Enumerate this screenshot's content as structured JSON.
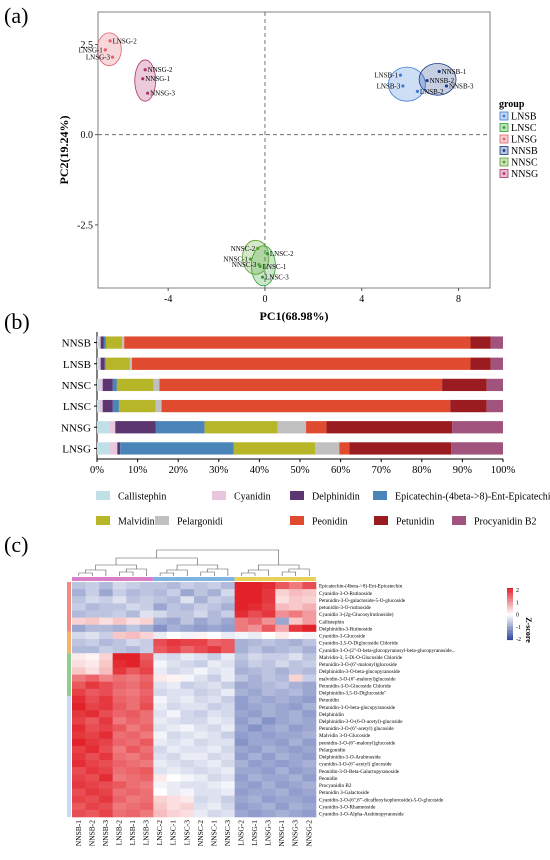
{
  "panels": {
    "a": "(a)",
    "b": "(b)",
    "c": "(c)"
  },
  "chart_data": [
    {
      "type": "scatter",
      "xlabel": "PC1(68.98%)",
      "ylabel": "PC2(19.24%)",
      "xlim": [
        -6.9,
        9.3
      ],
      "ylim": [
        -4.25,
        3.4
      ],
      "xticks": [
        "-4",
        "0",
        "4",
        "8"
      ],
      "yticks": [
        "2.5",
        "0.0",
        "-2.5"
      ],
      "grid": false,
      "legend_title": "group",
      "legend_placement": "right",
      "groups": [
        {
          "name": "LNSB",
          "color": "#3a7bd5",
          "points": [
            {
              "label": "LNSB-1",
              "x": 5.6,
              "y": 1.65
            },
            {
              "label": "LNSB-2",
              "x": 6.3,
              "y": 1.2
            },
            {
              "label": "LNSB-3",
              "x": 5.7,
              "y": 1.35
            }
          ]
        },
        {
          "name": "LNSC",
          "color": "#2ca02c",
          "points": [
            {
              "label": "LNSC-1",
              "x": -0.2,
              "y": -3.65
            },
            {
              "label": "LNSC-2",
              "x": 0.1,
              "y": -3.3
            },
            {
              "label": "LNSC-3",
              "x": -0.1,
              "y": -3.95
            }
          ]
        },
        {
          "name": "LNSG",
          "color": "#e0616b",
          "points": [
            {
              "label": "LNSG-1",
              "x": -6.6,
              "y": 2.35
            },
            {
              "label": "LNSG-2",
              "x": -6.4,
              "y": 2.6
            },
            {
              "label": "LNSG-3",
              "x": -6.3,
              "y": 2.15
            }
          ]
        },
        {
          "name": "NNSB",
          "color": "#1a3a8a",
          "points": [
            {
              "label": "NNSB-1",
              "x": 7.2,
              "y": 1.75
            },
            {
              "label": "NNSB-2",
              "x": 6.7,
              "y": 1.5
            },
            {
              "label": "NNSB-3",
              "x": 7.5,
              "y": 1.35
            }
          ]
        },
        {
          "name": "NNSC",
          "color": "#5aa02c",
          "points": [
            {
              "label": "NNSC-1",
              "x": -0.6,
              "y": -3.45
            },
            {
              "label": "NNSC-2",
              "x": -0.3,
              "y": -3.15
            },
            {
              "label": "NNSC-3",
              "x": -0.25,
              "y": -3.6
            }
          ]
        },
        {
          "name": "NNSG",
          "color": "#b0306b",
          "points": [
            {
              "label": "NNSG-1",
              "x": -5.05,
              "y": 1.55
            },
            {
              "label": "NNSG-2",
              "x": -4.95,
              "y": 1.8
            },
            {
              "label": "NNSG-3",
              "x": -4.85,
              "y": 1.15
            }
          ]
        }
      ]
    },
    {
      "type": "bar",
      "orientation": "horizontal",
      "stacked": true,
      "categories": [
        "NNSB",
        "LNSB",
        "NNSC",
        "LNSC",
        "NNSG",
        "LNSG"
      ],
      "xticks": [
        "0%",
        "10%",
        "20%",
        "30%",
        "40%",
        "50%",
        "60%",
        "70%",
        "80%",
        "90%",
        "100%"
      ],
      "xlim": [
        0,
        100
      ],
      "legend_placement": "bottom",
      "series": [
        {
          "name": "Callistephin",
          "color": "#bfe0e6",
          "values": [
            0.4,
            0.4,
            0.6,
            0.6,
            3.0,
            3.0
          ]
        },
        {
          "name": "Cyanidin",
          "color": "#e8c6dd",
          "values": [
            0.5,
            0.5,
            0.8,
            0.8,
            1.5,
            2.0
          ]
        },
        {
          "name": "Delphinidin",
          "color": "#5c3670",
          "values": [
            0.8,
            1.0,
            2.5,
            2.5,
            10.0,
            0.7
          ]
        },
        {
          "name": "Epicatechin-(4beta->8)-Ent-Epicatechin",
          "color": "#4a84b8",
          "values": [
            0.5,
            0.2,
            1.0,
            1.5,
            12.0,
            28.0
          ]
        },
        {
          "name": "Malvidin",
          "color": "#b7b528",
          "values": [
            4.0,
            6.0,
            9.0,
            9.0,
            18.0,
            20.0
          ]
        },
        {
          "name": "Pelargonidi",
          "color": "#c0c0c0",
          "values": [
            0.5,
            0.5,
            1.5,
            1.5,
            7.0,
            6.0
          ]
        },
        {
          "name": "Peonidin",
          "color": "#e04a2f",
          "values": [
            85.3,
            83.4,
            69.6,
            71.1,
            5.0,
            2.5
          ]
        },
        {
          "name": "Petunidin",
          "color": "#9b1c20",
          "values": [
            5.0,
            5.0,
            11.0,
            9.0,
            31.0,
            25.0
          ]
        },
        {
          "name": "Procyanidin B2",
          "color": "#a0537d",
          "values": [
            3.0,
            3.0,
            4.0,
            4.0,
            12.5,
            12.8
          ]
        }
      ]
    },
    {
      "type": "heatmap",
      "colorbar_label": "Z-score",
      "colorbar_ticks": [
        "2",
        "1",
        "0",
        "-1",
        "-2"
      ],
      "zlim": [
        -2,
        2
      ],
      "columns": [
        "NNSB-1",
        "NNSB-2",
        "NNSB-3",
        "LNSB-2",
        "LNSB-1",
        "LNSB-3",
        "LNSC-2",
        "LNSC-1",
        "LNSC-3",
        "NNSC-2",
        "NNSC-1",
        "NNSC-3",
        "LNSG-2",
        "LNSG-1",
        "LNSG-3",
        "NNSG-1",
        "NNSG-3",
        "NNSG-2"
      ],
      "rows": [
        "Epicatechin-(4beta->8)-Ent-Epicatechin",
        "Cyanidin-3-O-Rutinoside",
        "Petunidin-3-O-galactoside-5-O-glucoside",
        "petunidin-3-O-rutinoside",
        "Cyanidin 3-(2g-Glucosylrutinoside)",
        "Callistephin",
        "Delphinidin-3-Rutinoside",
        "Cyanidin-3-Glucoside",
        "Cyanidin-3,5-O-Diglucoside Chloride",
        "Cyanidin-3-O-(2''-O-beta-glucopyranosyl-beta-glucopyranoside...",
        "Malvidin-3, 5-Di-O-Glucoside Chloride",
        "Petunidin-3-O-(6''-malonyl)glucoside",
        "Delphinidin-3-O-beta-glucopyranoside",
        "malvidin-3-O-(6''-malonyl)glucoside",
        "Petunidin-3-O-Glucoside Chloride",
        "Delphinidin-3,5-O-Diglucoside\"",
        "Petunidin",
        "Petunidin-3-O-beta-glucopyranoside",
        "Delphinidin",
        "Delphinidin-3-O-(6-O-acetyl)-glucoside",
        "Petunidin-3-O-(6''-acetyl) glucoside",
        "Malvidin 3-O-Glucoside",
        "peonidin-3-O-(6''-malonyl)glucoside",
        "Pelargonidin",
        "Delphinidin-3-O-Arabinoside",
        "cyanidin-3-O-(6''-acetyl) glucoside",
        "Peonidin-3-O-Beta-Galactopyranoside",
        "Peonidin",
        "Procyanidin B2",
        "Petunidin 3-Galactoside",
        "Cyanidin-3-O-(6'',6'''-dicaffeoylsophoroside)-5-O-glucoside",
        "Cyanidin-3-O-Rhamnoside",
        "Cyanidin-3-O-Alpha-Arabinopyranoside"
      ],
      "values": [
        [
          -0.6,
          -0.5,
          -0.7,
          -0.4,
          -0.5,
          -0.6,
          -0.6,
          -0.7,
          -0.5,
          -0.6,
          -0.5,
          -0.7,
          2.0,
          2.2,
          1.9,
          1.5,
          1.2,
          1.6
        ],
        [
          -0.8,
          -0.5,
          -0.9,
          -0.5,
          -0.7,
          -0.6,
          -0.7,
          -0.5,
          -0.9,
          -0.6,
          -0.8,
          -0.4,
          2.2,
          2.3,
          1.8,
          0.4,
          0.6,
          0.5
        ],
        [
          -0.6,
          -0.4,
          -0.5,
          -0.3,
          -0.6,
          -0.5,
          -0.6,
          -0.7,
          -0.3,
          -0.8,
          -0.5,
          -0.6,
          2.1,
          2.2,
          1.8,
          0.3,
          0.5,
          0.4
        ],
        [
          -0.5,
          -0.7,
          -0.6,
          -0.6,
          -0.4,
          -0.5,
          -0.9,
          -0.6,
          -0.7,
          -0.5,
          -0.6,
          -0.8,
          2.0,
          1.9,
          1.7,
          0.6,
          0.5,
          0.7
        ],
        [
          -0.7,
          -0.6,
          -0.6,
          -0.5,
          -0.7,
          -0.3,
          -0.4,
          -0.6,
          -0.6,
          -0.4,
          -0.7,
          -0.5,
          1.9,
          1.6,
          1.8,
          1.0,
          1.2,
          0.9
        ],
        [
          0.4,
          0.5,
          0.3,
          0.5,
          0.3,
          0.4,
          -0.8,
          -0.9,
          -0.6,
          -0.9,
          -0.7,
          -0.9,
          1.2,
          1.4,
          1.0,
          -0.9,
          0.5,
          0.9
        ],
        [
          -0.9,
          -0.7,
          -0.7,
          -0.8,
          -0.6,
          -0.8,
          -1.1,
          -0.8,
          -0.9,
          -1.0,
          -0.9,
          -1.0,
          1.2,
          1.0,
          1.5,
          0.8,
          1.8,
          2.4
        ],
        [
          -0.4,
          -0.3,
          -0.5,
          0.5,
          0.6,
          0.4,
          -0.2,
          0.0,
          -0.1,
          0.1,
          0.0,
          -0.2,
          -0.1,
          -0.2,
          0.0,
          0.2,
          0.0,
          -0.1
        ],
        [
          -0.6,
          -0.5,
          -0.7,
          -0.6,
          -0.4,
          -0.5,
          1.6,
          1.8,
          1.7,
          1.7,
          1.4,
          1.5,
          -0.8,
          -0.7,
          -0.6,
          -0.7,
          -0.8,
          -0.6
        ],
        [
          -0.7,
          -0.7,
          -0.5,
          -0.6,
          -0.7,
          -0.5,
          1.5,
          1.7,
          1.4,
          1.6,
          1.8,
          1.5,
          -0.8,
          -0.6,
          -0.8,
          -0.7,
          -0.6,
          -0.8
        ],
        [
          0.2,
          0.1,
          0.4,
          2.1,
          2.3,
          1.5,
          -0.3,
          -0.4,
          -0.2,
          -0.3,
          -0.5,
          -0.2,
          -0.6,
          -0.4,
          -0.5,
          -0.5,
          -0.3,
          -0.6
        ],
        [
          0.3,
          0.2,
          0.5,
          1.9,
          2.0,
          1.6,
          -0.1,
          -0.3,
          -0.4,
          -0.5,
          -0.2,
          -0.3,
          -0.7,
          -0.5,
          -0.6,
          -0.4,
          -0.6,
          -0.5
        ],
        [
          0.5,
          0.3,
          0.6,
          1.8,
          1.5,
          1.7,
          -0.2,
          -0.4,
          -0.3,
          -0.1,
          -0.3,
          -0.2,
          -0.8,
          -0.7,
          -0.6,
          -0.8,
          -0.6,
          -0.7
        ],
        [
          1.2,
          1.4,
          1.1,
          1.3,
          1.2,
          1.4,
          0.2,
          0.1,
          -0.1,
          -0.3,
          -0.5,
          -0.2,
          -0.6,
          -0.8,
          -0.6,
          -0.7,
          0.4,
          -0.5
        ],
        [
          1.5,
          1.8,
          1.6,
          1.4,
          1.3,
          1.5,
          -0.3,
          -0.2,
          -0.5,
          -0.4,
          -0.3,
          -0.5,
          -0.9,
          -0.8,
          -0.7,
          -0.6,
          -0.8,
          -0.9
        ],
        [
          1.7,
          1.5,
          1.6,
          1.3,
          1.2,
          1.4,
          -0.4,
          -0.3,
          -0.3,
          -0.5,
          -0.4,
          -0.2,
          -0.8,
          -0.9,
          -0.7,
          -0.8,
          -0.7,
          -0.9
        ],
        [
          1.9,
          1.6,
          1.8,
          1.4,
          1.3,
          1.5,
          -0.1,
          -0.3,
          -0.2,
          -0.4,
          -0.3,
          -0.5,
          -1.0,
          -0.8,
          -0.9,
          -0.8,
          -0.9,
          -1.0
        ],
        [
          2.0,
          1.7,
          1.8,
          1.5,
          1.3,
          1.6,
          -0.2,
          -0.4,
          -0.3,
          -0.3,
          -0.5,
          -0.4,
          -1.0,
          -0.9,
          -0.8,
          -0.9,
          -1.0,
          -0.8
        ],
        [
          1.8,
          1.9,
          1.6,
          1.4,
          1.5,
          1.3,
          -0.3,
          -0.1,
          -0.4,
          -0.5,
          -0.3,
          -0.4,
          -0.9,
          -1.0,
          -0.8,
          -0.9,
          -0.8,
          -1.0
        ],
        [
          1.7,
          1.5,
          1.8,
          1.2,
          1.4,
          1.3,
          -0.2,
          -0.3,
          -0.4,
          -0.4,
          -0.2,
          -0.3,
          -1.0,
          -0.8,
          -1.1,
          -0.9,
          -0.8,
          -0.9
        ],
        [
          1.9,
          1.6,
          1.7,
          1.5,
          1.2,
          1.4,
          -0.3,
          -0.2,
          -0.1,
          -0.3,
          -0.4,
          -0.2,
          -0.9,
          -1.1,
          -0.9,
          -0.8,
          -1.0,
          -0.9
        ],
        [
          1.8,
          1.7,
          1.9,
          1.3,
          1.4,
          1.2,
          -0.1,
          -0.4,
          -0.3,
          -0.2,
          -0.3,
          -0.5,
          -1.0,
          -0.9,
          -1.0,
          -0.9,
          -0.9,
          -0.8
        ],
        [
          2.0,
          1.8,
          1.7,
          1.4,
          1.3,
          1.5,
          -0.2,
          -0.3,
          -0.2,
          -0.4,
          -0.3,
          -0.3,
          -1.1,
          -0.9,
          -0.9,
          -1.0,
          -0.8,
          -1.0
        ],
        [
          1.7,
          1.9,
          1.6,
          1.2,
          1.5,
          1.3,
          -0.4,
          -0.2,
          -0.3,
          -0.3,
          -0.2,
          -0.4,
          -0.9,
          -1.0,
          -0.8,
          -0.9,
          -1.0,
          -0.9
        ],
        [
          1.8,
          1.6,
          1.8,
          1.3,
          1.2,
          1.4,
          -0.3,
          -0.4,
          -0.2,
          -0.2,
          -0.4,
          -0.3,
          -1.0,
          -0.8,
          -1.0,
          -0.8,
          -0.9,
          -1.0
        ],
        [
          1.9,
          1.7,
          1.6,
          1.4,
          1.3,
          1.2,
          -0.2,
          -0.3,
          -0.4,
          -0.3,
          -0.2,
          -0.4,
          -0.8,
          -1.0,
          -0.9,
          -1.0,
          -0.9,
          -0.8
        ],
        [
          1.6,
          1.8,
          1.7,
          1.3,
          1.4,
          1.5,
          -0.3,
          -0.2,
          -0.3,
          -0.4,
          -0.3,
          -0.2,
          -0.9,
          -0.9,
          -1.0,
          -0.8,
          -1.0,
          -0.9
        ],
        [
          1.7,
          1.6,
          1.9,
          1.2,
          1.3,
          1.4,
          0.2,
          0.0,
          -0.1,
          -0.2,
          -0.4,
          -0.3,
          -1.0,
          -0.8,
          -0.9,
          -0.9,
          -0.8,
          -1.0
        ],
        [
          1.8,
          1.7,
          1.6,
          1.5,
          1.3,
          1.2,
          -0.1,
          -0.2,
          -0.3,
          -0.3,
          -0.2,
          -0.1,
          -0.9,
          -1.0,
          -0.8,
          -1.0,
          -0.9,
          -0.8
        ],
        [
          1.6,
          1.8,
          1.7,
          1.3,
          1.4,
          1.3,
          0.0,
          -0.2,
          -0.1,
          -0.3,
          -0.3,
          -0.2,
          -1.0,
          -0.9,
          -0.9,
          -0.8,
          -1.0,
          -0.9
        ],
        [
          1.7,
          1.6,
          1.8,
          1.4,
          1.2,
          1.3,
          0.4,
          0.3,
          0.2,
          -0.4,
          -0.3,
          -0.5,
          -0.9,
          -0.8,
          -1.0,
          -0.9,
          -0.9,
          -1.0
        ],
        [
          1.5,
          1.7,
          1.6,
          1.2,
          1.3,
          1.4,
          0.5,
          0.3,
          0.4,
          -0.3,
          -0.2,
          -0.4,
          -1.0,
          -0.9,
          -0.8,
          -1.0,
          -0.8,
          -0.9
        ],
        [
          1.6,
          1.5,
          1.7,
          1.3,
          1.4,
          1.2,
          0.6,
          0.4,
          0.3,
          -0.2,
          -0.4,
          -0.3,
          -0.9,
          -1.0,
          -0.9,
          -0.8,
          -0.9,
          -1.0
        ]
      ]
    }
  ]
}
